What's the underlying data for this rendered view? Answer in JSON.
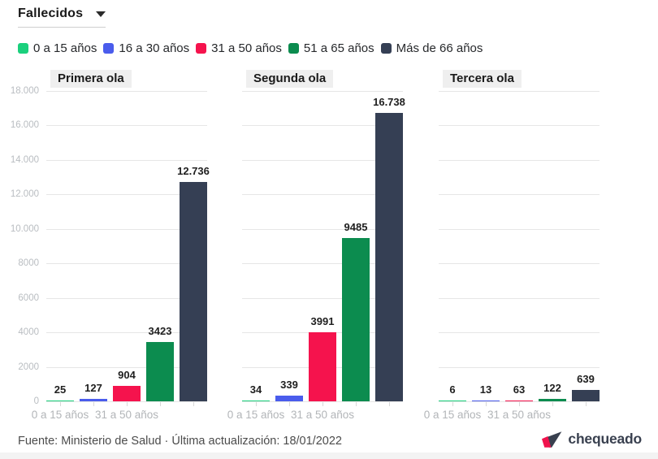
{
  "controls": {
    "metric_label": "Fallecidos"
  },
  "legend": {
    "items": [
      {
        "label": "0 a 15 años",
        "color": "#1BD07D"
      },
      {
        "label": "16 a 30 años",
        "color": "#4A5CEC"
      },
      {
        "label": "31 a 50 años",
        "color": "#F5134D"
      },
      {
        "label": "51 a 65 años",
        "color": "#0C8C4F"
      },
      {
        "label": "Más de 66 años",
        "color": "#353F54"
      }
    ]
  },
  "chart_data": {
    "type": "bar",
    "title": "Fallecidos",
    "categories": [
      "0 a 15 años",
      "16 a 30 años",
      "31 a 50 años",
      "51 a 65 años",
      "Más de 66 años"
    ],
    "panels": [
      {
        "title": "Primera ola",
        "values": [
          25,
          127,
          904,
          3423,
          12736
        ],
        "value_labels": [
          "25",
          "127",
          "904",
          "3423",
          "12.736"
        ]
      },
      {
        "title": "Segunda ola",
        "values": [
          34,
          339,
          3991,
          9485,
          16738
        ],
        "value_labels": [
          "34",
          "339",
          "3991",
          "9485",
          "16.738"
        ]
      },
      {
        "title": "Tercera ola",
        "values": [
          6,
          13,
          63,
          122,
          639
        ],
        "value_labels": [
          "6",
          "13",
          "63",
          "122",
          "639"
        ]
      }
    ],
    "ylim": [
      0,
      18000
    ],
    "y_tick_step": 2000,
    "y_tick_labels_top_to_bottom": [
      "18.000",
      "16.000",
      "14.000",
      "12.000",
      "10.000",
      "8000",
      "6000",
      "4000",
      "2000",
      "0"
    ],
    "x_tick_labels_shown": [
      "0 a 15 años",
      "31 a 50 años"
    ],
    "x_tick_label_indices": [
      0,
      2
    ],
    "grid": true,
    "legend_position": "top"
  },
  "footer": {
    "source": "Fuente: Ministerio de Salud · Última actualización: 18/01/2022",
    "brand": "chequeado",
    "brand_colors": {
      "navy": "#39404f",
      "red": "#f0134d"
    }
  }
}
